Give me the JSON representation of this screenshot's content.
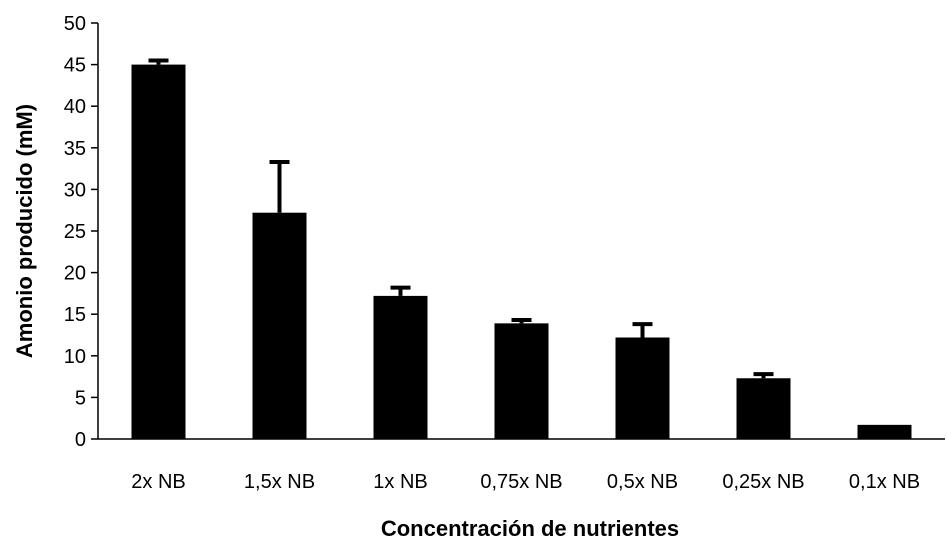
{
  "chart_data": {
    "type": "bar",
    "title": "",
    "xlabel": "Concentración de nutrientes",
    "ylabel": "Amonio producido (mM)",
    "categories": [
      "2x NB",
      "1,5x NB",
      "1x NB",
      "0,75x NB",
      "0,5x NB",
      "0,25x NB",
      "0,1x NB"
    ],
    "values": [
      45,
      27.2,
      17.2,
      13.9,
      12.2,
      7.3,
      1.7
    ],
    "error_upper": [
      45.5,
      33.3,
      18.2,
      14.3,
      13.8,
      7.8,
      1.7
    ],
    "ylim": [
      0,
      50
    ],
    "yticks": [
      "0",
      "5",
      "10",
      "15",
      "20",
      "25",
      "30",
      "35",
      "40",
      "45",
      "50"
    ],
    "grid": false,
    "bar_color": "#000000"
  }
}
